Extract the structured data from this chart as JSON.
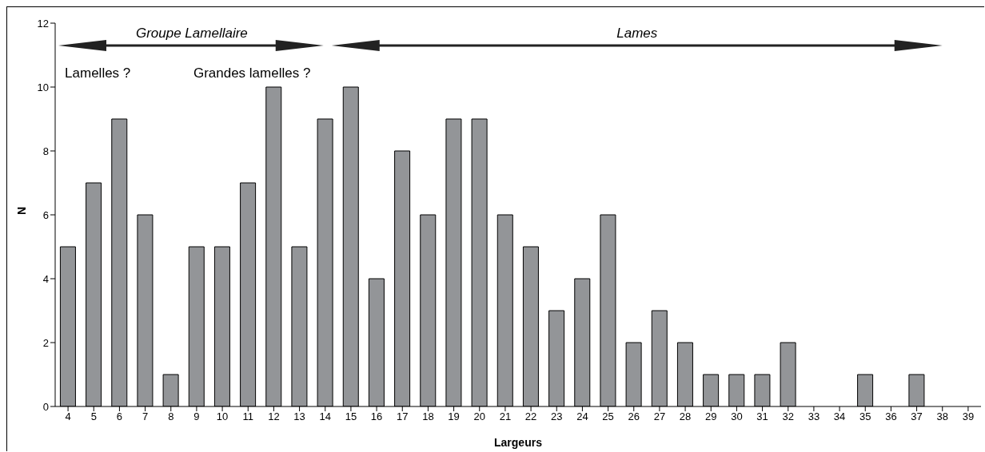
{
  "chart_data": {
    "type": "bar",
    "xlabel": "Largeurs",
    "ylabel": "N",
    "categories": [
      "4",
      "5",
      "6",
      "7",
      "8",
      "9",
      "10",
      "11",
      "12",
      "13",
      "14",
      "15",
      "16",
      "17",
      "18",
      "19",
      "20",
      "21",
      "22",
      "23",
      "24",
      "25",
      "26",
      "27",
      "28",
      "29",
      "30",
      "31",
      "32",
      "33",
      "34",
      "35",
      "36",
      "37",
      "38",
      "39"
    ],
    "values": [
      5,
      7,
      9,
      6,
      1,
      5,
      5,
      7,
      10,
      5,
      9,
      10,
      4,
      8,
      6,
      9,
      9,
      6,
      5,
      3,
      4,
      6,
      2,
      3,
      2,
      1,
      1,
      1,
      2,
      0,
      0,
      1,
      0,
      1,
      0,
      0
    ],
    "color": "#939598",
    "ylim": [
      0,
      12
    ],
    "yticks": [
      0,
      2,
      4,
      6,
      8,
      10,
      12
    ],
    "annotations": [
      "Groupe Lamellaire",
      "Lames",
      "Lamelles ?",
      "Grandes lamelles ?"
    ]
  }
}
